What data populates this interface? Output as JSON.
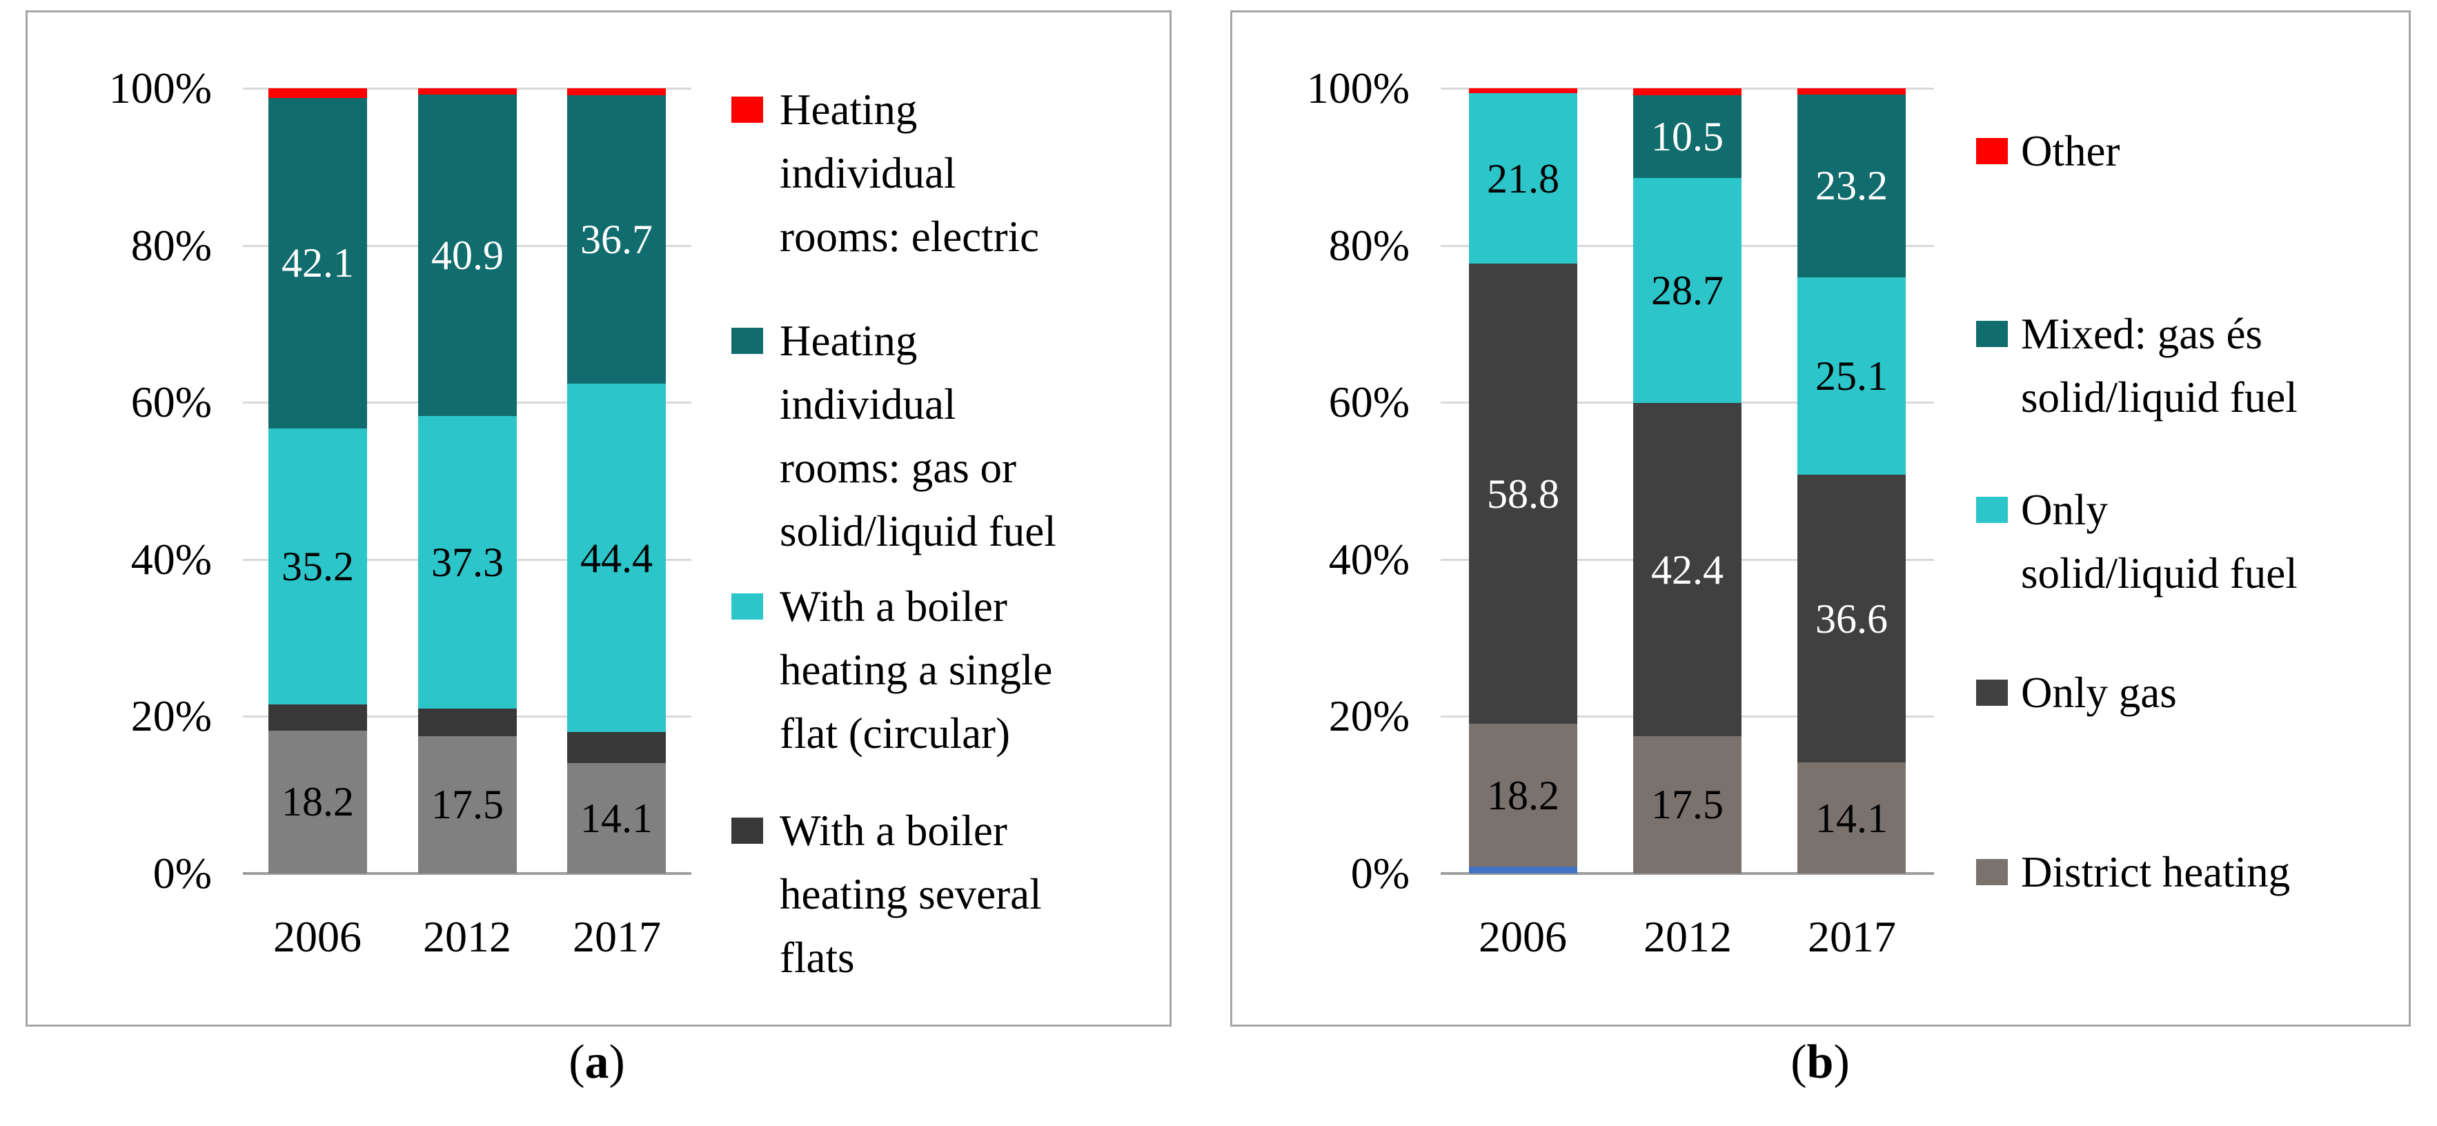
{
  "figure": {
    "background": "#ffffff",
    "panel_border_color": "#a6a6a6",
    "grid_color": "#d9d9d9",
    "axis_line_color": "#9e9e9e",
    "panels": [
      {
        "id": "a",
        "caption": {
          "open": "(",
          "letter": "a",
          "close": ")"
        },
        "y_ticks": [
          "100%",
          "80%",
          "60%",
          "40%",
          "20%",
          "0%"
        ],
        "categories": [
          "2006",
          "2012",
          "2017"
        ],
        "legend": [
          {
            "color": "#ff0000",
            "lines": [
              "Heating",
              "individual",
              "rooms: electric"
            ]
          },
          {
            "color": "#116c6e",
            "lines": [
              "Heating",
              "individual",
              "rooms: gas or",
              "solid/liquid fuel"
            ]
          },
          {
            "color": "#2cc5c9",
            "lines": [
              "With a boiler",
              "heating a single",
              "flat (circular)"
            ]
          },
          {
            "color": "#383838",
            "lines": [
              "With a boiler",
              "heating several",
              "flats"
            ]
          }
        ],
        "bars": [
          {
            "category": "2006",
            "segments": [
              {
                "color": "#808080",
                "value": 18.2,
                "label": "18.2",
                "label_color": "#000000"
              },
              {
                "color": "#383838",
                "value": 3.3
              },
              {
                "color": "#2cc5c9",
                "value": 35.2,
                "label": "35.2",
                "label_color": "#000000"
              },
              {
                "color": "#116c6e",
                "value": 42.1,
                "label": "42.1",
                "label_color": "#ffffff"
              },
              {
                "color": "#ff0000",
                "value": 1.2
              }
            ]
          },
          {
            "category": "2012",
            "segments": [
              {
                "color": "#808080",
                "value": 17.5,
                "label": "17.5",
                "label_color": "#000000"
              },
              {
                "color": "#383838",
                "value": 3.5
              },
              {
                "color": "#2cc5c9",
                "value": 37.3,
                "label": "37.3",
                "label_color": "#000000"
              },
              {
                "color": "#116c6e",
                "value": 40.9,
                "label": "40.9",
                "label_color": "#ffffff"
              },
              {
                "color": "#ff0000",
                "value": 0.8
              }
            ]
          },
          {
            "category": "2017",
            "segments": [
              {
                "color": "#808080",
                "value": 14.1,
                "label": "14.1",
                "label_color": "#000000"
              },
              {
                "color": "#383838",
                "value": 3.9
              },
              {
                "color": "#2cc5c9",
                "value": 44.4,
                "label": "44.4",
                "label_color": "#000000"
              },
              {
                "color": "#116c6e",
                "value": 36.7,
                "label": "36.7",
                "label_color": "#ffffff"
              },
              {
                "color": "#ff0000",
                "value": 0.9
              }
            ]
          }
        ]
      },
      {
        "id": "b",
        "caption": {
          "open": "(",
          "letter": "b",
          "close": ")"
        },
        "y_ticks": [
          "100%",
          "80%",
          "60%",
          "40%",
          "20%",
          "0%"
        ],
        "categories": [
          "2006",
          "2012",
          "2017"
        ],
        "legend": [
          {
            "color": "#ff0000",
            "lines": [
              "Other"
            ]
          },
          {
            "color": "#116c6e",
            "lines": [
              "Mixed: gas és",
              "solid/liquid fuel"
            ]
          },
          {
            "color": "#2cc5c9",
            "lines": [
              "Only",
              "solid/liquid fuel"
            ]
          },
          {
            "color": "#404040",
            "lines": [
              "Only gas"
            ]
          },
          {
            "color": "#7a726d",
            "lines": [
              "District heating"
            ]
          }
        ],
        "bars": [
          {
            "category": "2006",
            "segments": [
              {
                "color": "#4472c4",
                "value": 0.9
              },
              {
                "color": "#7a726d",
                "value": 18.2,
                "label": "18.2",
                "label_color": "#000000"
              },
              {
                "color": "#404040",
                "value": 58.8,
                "label": "58.8",
                "label_color": "#ffffff"
              },
              {
                "color": "#2cc5c9",
                "value": 21.8,
                "label": "21.8",
                "label_color": "#000000"
              },
              {
                "color": "#ff0000",
                "value": 0.6
              }
            ]
          },
          {
            "category": "2012",
            "segments": [
              {
                "color": "#7a726d",
                "value": 17.5,
                "label": "17.5",
                "label_color": "#000000"
              },
              {
                "color": "#404040",
                "value": 42.4,
                "label": "42.4",
                "label_color": "#ffffff"
              },
              {
                "color": "#2cc5c9",
                "value": 28.7,
                "label": "28.7",
                "label_color": "#000000"
              },
              {
                "color": "#116c6e",
                "value": 10.5,
                "label": "10.5",
                "label_color": "#ffffff"
              },
              {
                "color": "#ff0000",
                "value": 0.9
              }
            ]
          },
          {
            "category": "2017",
            "segments": [
              {
                "color": "#7a726d",
                "value": 14.1,
                "label": "14.1",
                "label_color": "#000000"
              },
              {
                "color": "#404040",
                "value": 36.6,
                "label": "36.6",
                "label_color": "#ffffff"
              },
              {
                "color": "#2cc5c9",
                "value": 25.1,
                "label": "25.1",
                "label_color": "#000000"
              },
              {
                "color": "#116c6e",
                "value": 23.2,
                "label": "23.2",
                "label_color": "#ffffff"
              },
              {
                "color": "#ff0000",
                "value": 0.8
              }
            ]
          }
        ]
      }
    ]
  },
  "chart_data": [
    {
      "type": "bar",
      "stacked": true,
      "percent_stacked": true,
      "panel": "a",
      "title": "(a)",
      "categories": [
        "2006",
        "2012",
        "2017"
      ],
      "y_ticks": [
        "0%",
        "20%",
        "40%",
        "60%",
        "80%",
        "100%"
      ],
      "ylim": [
        0,
        100
      ],
      "grid": true,
      "legend_position": "right",
      "series_bottom_to_top": [
        {
          "legend": null,
          "color": "#808080",
          "values": [
            18.2,
            17.5,
            14.1
          ],
          "data_labels": true
        },
        {
          "legend": "With a boiler heating several flats",
          "color": "#383838",
          "values": [
            3.3,
            3.5,
            3.9
          ],
          "data_labels": false,
          "values_estimated": true
        },
        {
          "legend": "With a boiler heating a single flat (circular)",
          "color": "#2cc5c9",
          "values": [
            35.2,
            37.3,
            44.4
          ],
          "data_labels": true
        },
        {
          "legend": "Heating individual rooms: gas or solid/liquid fuel",
          "color": "#116c6e",
          "values": [
            42.1,
            40.9,
            36.7
          ],
          "data_labels": true
        },
        {
          "legend": "Heating individual rooms: electric",
          "color": "#ff0000",
          "values": [
            1.2,
            0.8,
            0.9
          ],
          "data_labels": false,
          "values_estimated": true
        }
      ]
    },
    {
      "type": "bar",
      "stacked": true,
      "percent_stacked": true,
      "panel": "b",
      "title": "(b)",
      "categories": [
        "2006",
        "2012",
        "2017"
      ],
      "y_ticks": [
        "0%",
        "20%",
        "40%",
        "60%",
        "80%",
        "100%"
      ],
      "ylim": [
        0,
        100
      ],
      "grid": true,
      "legend_position": "right",
      "series_bottom_to_top": [
        {
          "legend": null,
          "color": "#4472c4",
          "values": [
            0.9,
            0,
            0
          ],
          "data_labels": false,
          "values_estimated": true
        },
        {
          "legend": "District heating",
          "color": "#7a726d",
          "values": [
            18.2,
            17.5,
            14.1
          ],
          "data_labels": true
        },
        {
          "legend": "Only gas",
          "color": "#404040",
          "values": [
            58.8,
            42.4,
            36.6
          ],
          "data_labels": true
        },
        {
          "legend": "Only solid/liquid fuel",
          "color": "#2cc5c9",
          "values": [
            21.8,
            28.7,
            25.1
          ],
          "data_labels": true
        },
        {
          "legend": "Mixed: gas és solid/liquid fuel",
          "color": "#116c6e",
          "values": [
            0,
            10.5,
            23.2
          ],
          "data_labels": true
        },
        {
          "legend": "Other",
          "color": "#ff0000",
          "values": [
            0.6,
            0.9,
            0.8
          ],
          "data_labels": false,
          "values_estimated": true
        }
      ]
    }
  ]
}
